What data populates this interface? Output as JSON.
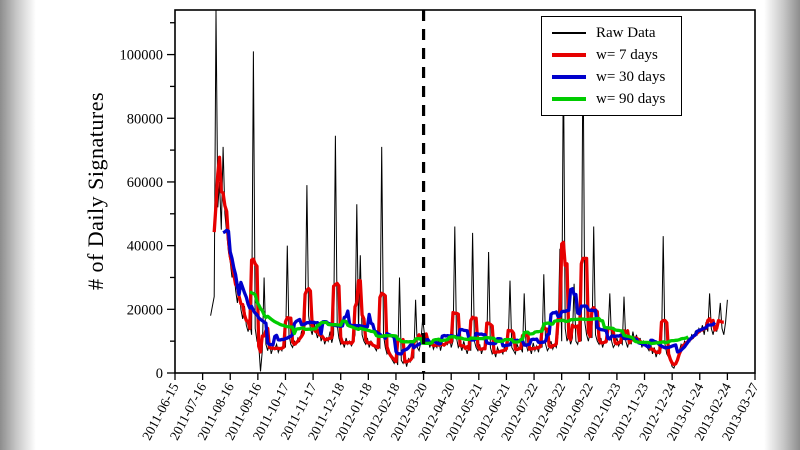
{
  "chart_data": {
    "type": "line",
    "title": "",
    "xlabel": "",
    "ylabel": "# of Daily Signatures",
    "ylim": [
      0,
      114000
    ],
    "yticks": [
      0,
      20000,
      40000,
      60000,
      80000,
      100000
    ],
    "ytick_labels": [
      "0",
      "20000",
      "40000",
      "60000",
      "80000",
      "100000"
    ],
    "y_minor_step": 10000,
    "x_day_range": [
      0,
      651
    ],
    "xtick_days": [
      0,
      31,
      62,
      93,
      124,
      155,
      186,
      217,
      248,
      279,
      310,
      341,
      372,
      403,
      434,
      465,
      496,
      527,
      558,
      589,
      620,
      651
    ],
    "xtick_labels": [
      "2011-06-15",
      "2011-07-16",
      "2011-08-16",
      "2011-09-16",
      "2011-10-17",
      "2011-11-17",
      "2011-12-18",
      "2012-01-18",
      "2012-02-18",
      "2012-03-20",
      "2012-04-20",
      "2012-05-21",
      "2012-06-21",
      "2012-07-22",
      "2012-08-22",
      "2012-09-22",
      "2012-10-23",
      "2012-11-23",
      "2012-12-24",
      "2013-01-24",
      "2013-02-24",
      "2013-03-27"
    ],
    "vline": {
      "day": 279,
      "at_label": "2012-03-20",
      "style": "dashed",
      "color": "#000000"
    },
    "grid": false,
    "legend_position": "top-right",
    "legend": {
      "entries": [
        {
          "label": "Raw Data",
          "color": "#000000",
          "width": 1
        },
        {
          "label": "w= 7 days",
          "color": "#e60000",
          "width": 3
        },
        {
          "label": "w= 30 days",
          "color": "#0000cc",
          "width": 3
        },
        {
          "label": "w= 90 days",
          "color": "#00cc00",
          "width": 3
        }
      ]
    },
    "smoothing_windows_days": [
      7,
      30,
      90
    ],
    "raw": {
      "name": "Raw Data",
      "start_day": 40,
      "step_days": 2,
      "values": [
        18000,
        21000,
        24000,
        114000,
        52000,
        60000,
        45000,
        71000,
        50000,
        44000,
        38000,
        35000,
        30000,
        33000,
        26000,
        22000,
        28000,
        20000,
        17000,
        21000,
        15000,
        13000,
        16000,
        12000,
        101000,
        14000,
        10000,
        9000,
        500,
        7000,
        30000,
        9000,
        7000,
        10000,
        6000,
        8000,
        7500,
        9000,
        6500,
        8000,
        7000,
        9500,
        8000,
        40000,
        12000,
        9000,
        8000,
        10000,
        9000,
        11000,
        10000,
        13000,
        12000,
        15000,
        59000,
        18000,
        14000,
        12000,
        16000,
        13000,
        11000,
        14000,
        10000,
        12000,
        9000,
        11000,
        10000,
        13000,
        9500,
        12000,
        74500,
        15000,
        11000,
        9000,
        10000,
        8000,
        11000,
        9000,
        10000,
        8500,
        9500,
        12000,
        53000,
        14000,
        37000,
        12000,
        10000,
        9000,
        11000,
        8000,
        10000,
        9000,
        8000,
        7000,
        9000,
        8000,
        71000,
        12000,
        8000,
        6000,
        7000,
        5000,
        4000,
        3000,
        5000,
        2500,
        30000,
        4000,
        3000,
        5000,
        2000,
        4500,
        3500,
        6000,
        5000,
        23000,
        8000,
        7000,
        10000,
        17000,
        12000,
        9000,
        11000,
        8000,
        10000,
        7500,
        9000,
        8000,
        11000,
        7000,
        9500,
        8500,
        10000,
        9000,
        12000,
        8000,
        10000,
        46000,
        11000,
        8000,
        9000,
        7000,
        10000,
        8000,
        6000,
        9000,
        7000,
        44000,
        10000,
        8000,
        7000,
        9000,
        6000,
        8000,
        7500,
        9000,
        38000,
        8000,
        6000,
        7000,
        5000,
        8000,
        6500,
        7000,
        6000,
        8500,
        7000,
        9000,
        29000,
        8000,
        7000,
        6000,
        9000,
        7500,
        8000,
        6500,
        25000,
        9000,
        7000,
        8000,
        6000,
        9500,
        7000,
        8500,
        6500,
        10000,
        8000,
        31000,
        9000,
        7000,
        8000,
        10000,
        7500,
        9000,
        8000,
        12000,
        39000,
        10000,
        101000,
        14000,
        10000,
        12000,
        9000,
        11000,
        28000,
        10000,
        9000,
        12000,
        10000,
        106000,
        16000,
        12000,
        10000,
        13000,
        11000,
        46000,
        12000,
        10000,
        9000,
        11000,
        8000,
        10000,
        9500,
        12000,
        25000,
        10000,
        8000,
        9000,
        11000,
        8500,
        10000,
        9000,
        24000,
        10000,
        8000,
        11000,
        9000,
        13000,
        10000,
        12000,
        9000,
        11000,
        8000,
        10000,
        9000,
        8000,
        7000,
        9000,
        6000,
        8000,
        5000,
        7000,
        6000,
        8000,
        43000,
        9000,
        6000,
        5000,
        4000,
        2000,
        1500,
        3000,
        5000,
        7000,
        9000,
        8000,
        10000,
        9000,
        11000,
        10000,
        12000,
        11000,
        13000,
        12000,
        14000,
        13000,
        15000,
        12000,
        16000,
        13000,
        25000,
        14000,
        12000,
        15000,
        13000,
        16000,
        22000,
        14000,
        12000,
        16000,
        23000
      ]
    }
  }
}
